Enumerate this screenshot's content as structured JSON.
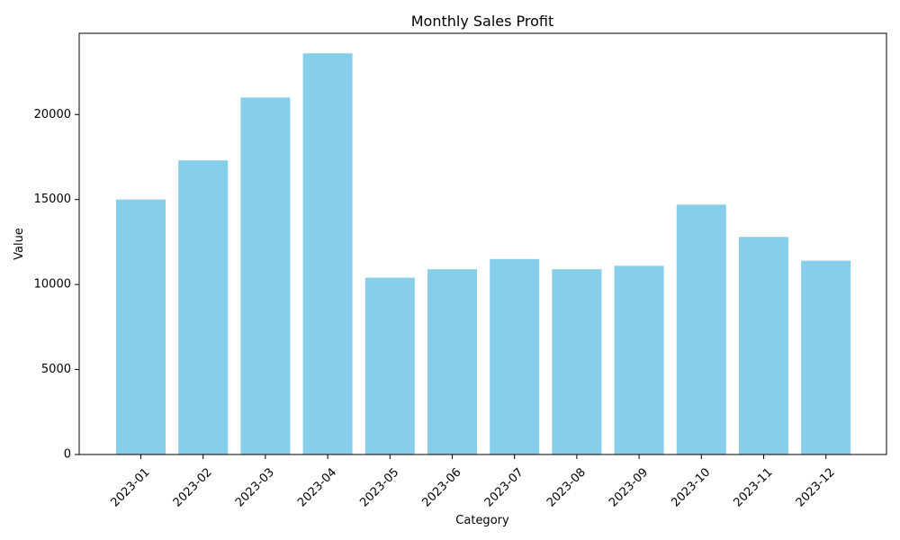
{
  "chart_data": {
    "type": "bar",
    "title": "Monthly Sales Profit",
    "xlabel": "Category",
    "ylabel": "Value",
    "categories": [
      "2023-01",
      "2023-02",
      "2023-03",
      "2023-04",
      "2023-05",
      "2023-06",
      "2023-07",
      "2023-08",
      "2023-09",
      "2023-10",
      "2023-11",
      "2023-12"
    ],
    "values": [
      15000,
      17300,
      21000,
      23600,
      10400,
      10900,
      11500,
      10900,
      11100,
      14700,
      12800,
      11400
    ],
    "yticks": [
      0,
      5000,
      10000,
      15000,
      20000
    ],
    "ylim": [
      0,
      24780
    ],
    "bar_color": "#87CEEB",
    "grid": false,
    "legend": "none"
  }
}
